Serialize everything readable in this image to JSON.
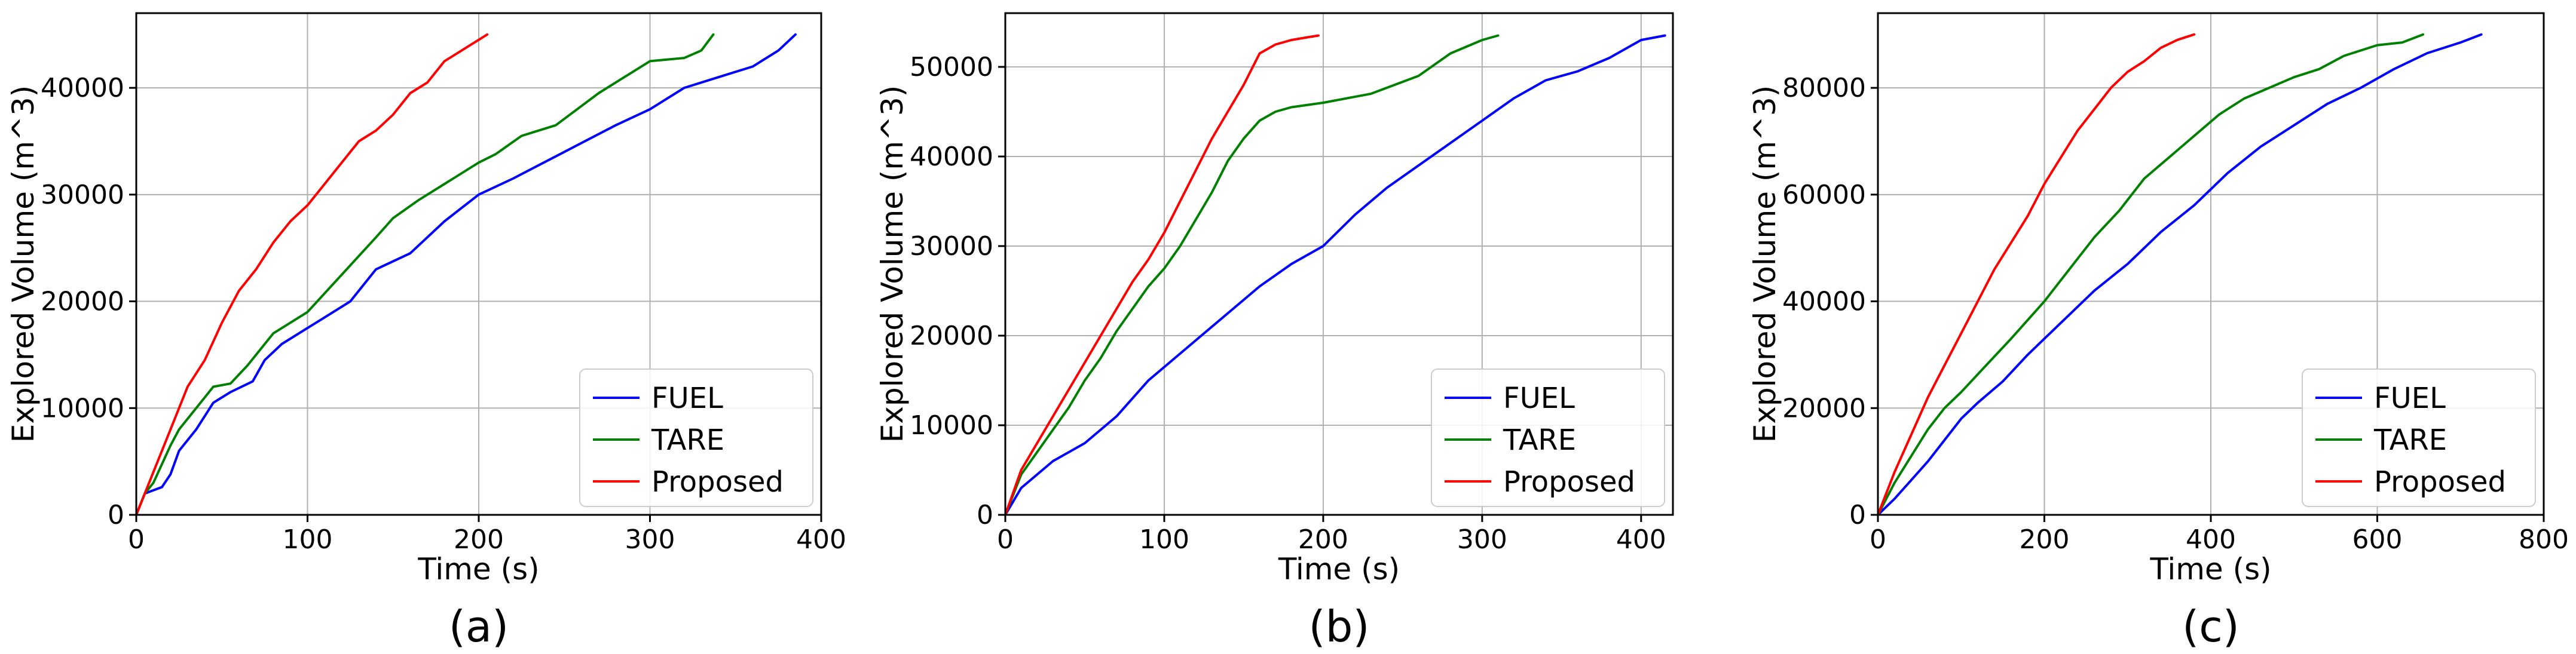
{
  "colors": {
    "FUEL": "#0000ff",
    "TARE": "#008000",
    "Proposed": "#ff0000"
  },
  "chart_data": [
    {
      "type": "line",
      "panel_label": "(a)",
      "xlabel": "Time (s)",
      "ylabel": "Explored Volume (m^3)",
      "xlim": [
        0,
        400
      ],
      "ylim": [
        0,
        47000
      ],
      "xticks": [
        0,
        100,
        200,
        300,
        400
      ],
      "yticks": [
        0,
        10000,
        20000,
        30000,
        40000
      ],
      "grid": true,
      "legend_position": "lower-right",
      "series": [
        {
          "name": "FUEL",
          "color": "#0000ff",
          "x": [
            0,
            5,
            15,
            20,
            25,
            35,
            45,
            55,
            68,
            75,
            85,
            100,
            110,
            125,
            140,
            160,
            180,
            200,
            220,
            250,
            280,
            300,
            320,
            340,
            360,
            375,
            385
          ],
          "y": [
            0,
            2000,
            2600,
            3800,
            6000,
            8000,
            10500,
            11500,
            12500,
            14500,
            16000,
            17500,
            18500,
            20000,
            23000,
            24500,
            27500,
            30000,
            31500,
            34000,
            36500,
            38000,
            40000,
            41000,
            42000,
            43500,
            45000
          ]
        },
        {
          "name": "TARE",
          "color": "#008000",
          "x": [
            0,
            5,
            10,
            20,
            25,
            35,
            45,
            55,
            65,
            80,
            100,
            120,
            140,
            150,
            165,
            180,
            200,
            210,
            225,
            245,
            270,
            285,
            300,
            320,
            330,
            337
          ],
          "y": [
            0,
            2000,
            3000,
            6500,
            8000,
            10000,
            12000,
            12300,
            14000,
            17000,
            19000,
            22500,
            26000,
            27800,
            29500,
            31000,
            33000,
            33800,
            35500,
            36500,
            39500,
            41000,
            42500,
            42800,
            43500,
            45000
          ]
        },
        {
          "name": "Proposed",
          "color": "#ff0000",
          "x": [
            0,
            5,
            10,
            20,
            30,
            40,
            50,
            60,
            70,
            80,
            90,
            100,
            110,
            120,
            130,
            140,
            150,
            160,
            170,
            180,
            190,
            195,
            200,
            205
          ],
          "y": [
            0,
            2000,
            4000,
            8000,
            12000,
            14500,
            18000,
            21000,
            23000,
            25500,
            27500,
            29000,
            31000,
            33000,
            35000,
            36000,
            37500,
            39500,
            40500,
            42500,
            43500,
            44000,
            44500,
            45000
          ]
        }
      ]
    },
    {
      "type": "line",
      "panel_label": "(b)",
      "xlabel": "Time (s)",
      "ylabel": "Explored Volume (m^3)",
      "xlim": [
        0,
        420
      ],
      "ylim": [
        0,
        56000
      ],
      "xticks": [
        0,
        100,
        200,
        300,
        400
      ],
      "yticks": [
        0,
        10000,
        20000,
        30000,
        40000,
        50000
      ],
      "grid": true,
      "legend_position": "lower-right",
      "series": [
        {
          "name": "FUEL",
          "color": "#0000ff",
          "x": [
            0,
            10,
            20,
            30,
            50,
            70,
            90,
            100,
            120,
            140,
            160,
            180,
            200,
            220,
            240,
            260,
            280,
            300,
            320,
            340,
            360,
            380,
            400,
            415
          ],
          "y": [
            0,
            3000,
            4500,
            6000,
            8000,
            11000,
            15000,
            16500,
            19500,
            22500,
            25500,
            28000,
            30000,
            33500,
            36500,
            39000,
            41500,
            44000,
            46500,
            48500,
            49500,
            51000,
            53000,
            53500
          ]
        },
        {
          "name": "TARE",
          "color": "#008000",
          "x": [
            0,
            10,
            20,
            30,
            40,
            50,
            60,
            70,
            80,
            90,
            100,
            110,
            120,
            130,
            140,
            150,
            160,
            170,
            180,
            200,
            230,
            260,
            280,
            300,
            310
          ],
          "y": [
            0,
            4500,
            7000,
            9500,
            12000,
            15000,
            17500,
            20500,
            23000,
            25500,
            27500,
            30000,
            33000,
            36000,
            39500,
            42000,
            44000,
            45000,
            45500,
            46000,
            47000,
            49000,
            51500,
            53000,
            53500
          ]
        },
        {
          "name": "Proposed",
          "color": "#ff0000",
          "x": [
            0,
            10,
            20,
            30,
            40,
            50,
            60,
            70,
            80,
            90,
            100,
            110,
            120,
            130,
            140,
            150,
            160,
            165,
            170,
            180,
            190,
            197
          ],
          "y": [
            0,
            5000,
            8000,
            11000,
            14000,
            17000,
            20000,
            23000,
            26000,
            28500,
            31500,
            35000,
            38500,
            42000,
            45000,
            48000,
            51500,
            52000,
            52500,
            53000,
            53300,
            53500
          ]
        }
      ]
    },
    {
      "type": "line",
      "panel_label": "(c)",
      "xlabel": "Time (s)",
      "ylabel": "Explored Volume (m^3)",
      "xlim": [
        0,
        800
      ],
      "ylim": [
        0,
        94000
      ],
      "xticks": [
        0,
        200,
        400,
        600,
        800
      ],
      "yticks": [
        0,
        20000,
        40000,
        60000,
        80000
      ],
      "grid": true,
      "legend_position": "lower-right",
      "series": [
        {
          "name": "FUEL",
          "color": "#0000ff",
          "x": [
            0,
            20,
            40,
            60,
            80,
            100,
            120,
            150,
            180,
            200,
            230,
            260,
            300,
            340,
            380,
            420,
            460,
            500,
            540,
            580,
            620,
            660,
            700,
            725
          ],
          "y": [
            0,
            3000,
            6500,
            10000,
            14000,
            18000,
            21000,
            25000,
            30000,
            33000,
            37500,
            42000,
            47000,
            53000,
            58000,
            64000,
            69000,
            73000,
            77000,
            80000,
            83500,
            86500,
            88500,
            90000
          ]
        },
        {
          "name": "TARE",
          "color": "#008000",
          "x": [
            0,
            20,
            40,
            60,
            80,
            100,
            130,
            160,
            200,
            230,
            260,
            290,
            320,
            350,
            380,
            410,
            440,
            470,
            500,
            530,
            560,
            600,
            630,
            655
          ],
          "y": [
            0,
            6000,
            11000,
            16000,
            20000,
            23000,
            28000,
            33000,
            40000,
            46000,
            52000,
            57000,
            63000,
            67000,
            71000,
            75000,
            78000,
            80000,
            82000,
            83500,
            86000,
            88000,
            88500,
            90000
          ]
        },
        {
          "name": "Proposed",
          "color": "#ff0000",
          "x": [
            0,
            20,
            40,
            60,
            80,
            100,
            120,
            140,
            160,
            180,
            200,
            220,
            240,
            260,
            280,
            300,
            320,
            340,
            360,
            380
          ],
          "y": [
            0,
            8000,
            15000,
            22000,
            28000,
            34000,
            40000,
            46000,
            51000,
            56000,
            62000,
            67000,
            72000,
            76000,
            80000,
            83000,
            85000,
            87500,
            89000,
            90000
          ]
        }
      ]
    }
  ]
}
